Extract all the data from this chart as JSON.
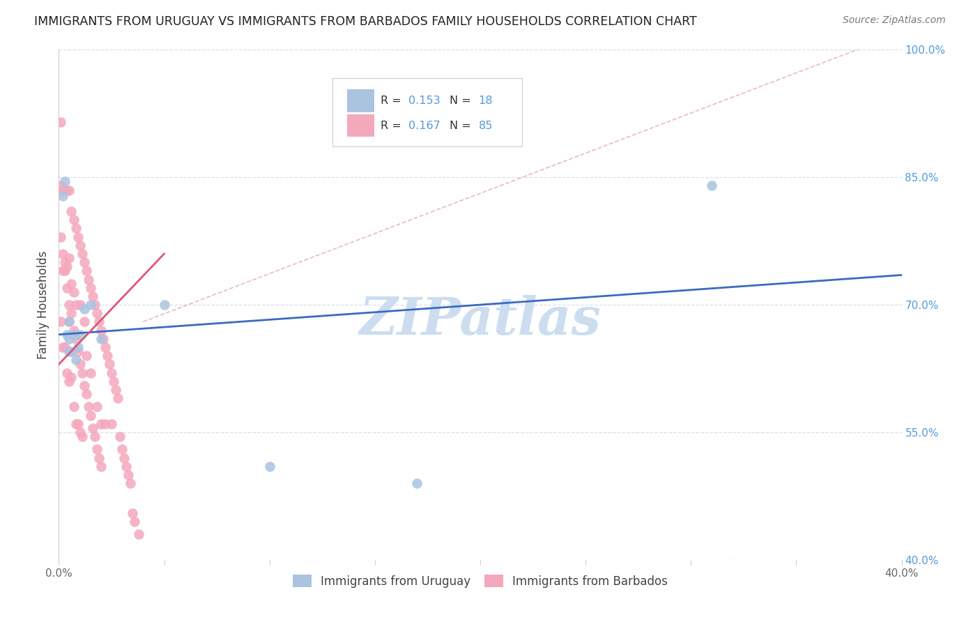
{
  "title": "IMMIGRANTS FROM URUGUAY VS IMMIGRANTS FROM BARBADOS FAMILY HOUSEHOLDS CORRELATION CHART",
  "source": "Source: ZipAtlas.com",
  "ylabel": "Family Households",
  "xlim": [
    0.0,
    0.4
  ],
  "ylim": [
    0.4,
    1.0
  ],
  "xtick_positions": [
    0.0,
    0.05,
    0.1,
    0.15,
    0.2,
    0.25,
    0.3,
    0.35,
    0.4
  ],
  "xtick_labels": [
    "0.0%",
    "",
    "",
    "",
    "",
    "",
    "",
    "",
    "40.0%"
  ],
  "ytick_positions": [
    0.4,
    0.55,
    0.7,
    0.85,
    1.0
  ],
  "ytick_labels": [
    "40.0%",
    "55.0%",
    "70.0%",
    "85.0%",
    "100.0%"
  ],
  "legend_r_uruguay": "0.153",
  "legend_n_uruguay": "18",
  "legend_r_barbados": "0.167",
  "legend_n_barbados": "85",
  "uruguay_color": "#aac4e0",
  "barbados_color": "#f4a8bc",
  "uruguay_line_color": "#3a6bbf",
  "barbados_line_color": "#e05575",
  "ref_line_color": "#e8b0bc",
  "grid_color": "#d8dfe8",
  "ytick_color": "#5599dd",
  "xtick_color": "#666666",
  "watermark": "ZIPatlas",
  "watermark_color": "#ccddf0",
  "uruguay_x": [
    0.002,
    0.003,
    0.004,
    0.005,
    0.005,
    0.006,
    0.007,
    0.008,
    0.01,
    0.012,
    0.015,
    0.02,
    0.05,
    0.1,
    0.17,
    0.31,
    0.005,
    0.009
  ],
  "uruguay_y": [
    0.828,
    0.845,
    0.665,
    0.68,
    0.645,
    0.645,
    0.665,
    0.635,
    0.665,
    0.695,
    0.7,
    0.66,
    0.7,
    0.51,
    0.49,
    0.84,
    0.66,
    0.65
  ],
  "barbados_x": [
    0.001,
    0.001,
    0.001,
    0.002,
    0.002,
    0.002,
    0.003,
    0.003,
    0.003,
    0.004,
    0.004,
    0.004,
    0.005,
    0.005,
    0.005,
    0.005,
    0.006,
    0.006,
    0.006,
    0.007,
    0.007,
    0.007,
    0.008,
    0.008,
    0.008,
    0.009,
    0.009,
    0.01,
    0.01,
    0.01,
    0.011,
    0.011,
    0.012,
    0.012,
    0.013,
    0.013,
    0.014,
    0.015,
    0.015,
    0.016,
    0.017,
    0.018,
    0.018,
    0.019,
    0.02,
    0.02,
    0.021,
    0.022,
    0.022,
    0.023,
    0.024,
    0.025,
    0.025,
    0.026,
    0.027,
    0.028,
    0.029,
    0.03,
    0.031,
    0.032,
    0.033,
    0.034,
    0.035,
    0.036,
    0.038,
    0.001,
    0.002,
    0.003,
    0.004,
    0.005,
    0.006,
    0.007,
    0.008,
    0.009,
    0.01,
    0.011,
    0.012,
    0.013,
    0.014,
    0.015,
    0.016,
    0.017,
    0.018,
    0.019,
    0.02
  ],
  "barbados_y": [
    0.915,
    0.84,
    0.68,
    0.835,
    0.74,
    0.65,
    0.835,
    0.75,
    0.65,
    0.835,
    0.745,
    0.62,
    0.835,
    0.755,
    0.68,
    0.61,
    0.81,
    0.725,
    0.615,
    0.8,
    0.715,
    0.58,
    0.79,
    0.7,
    0.56,
    0.78,
    0.56,
    0.77,
    0.7,
    0.55,
    0.76,
    0.545,
    0.75,
    0.68,
    0.74,
    0.64,
    0.73,
    0.72,
    0.62,
    0.71,
    0.7,
    0.69,
    0.58,
    0.68,
    0.67,
    0.56,
    0.66,
    0.65,
    0.56,
    0.64,
    0.63,
    0.62,
    0.56,
    0.61,
    0.6,
    0.59,
    0.545,
    0.53,
    0.52,
    0.51,
    0.5,
    0.49,
    0.455,
    0.445,
    0.43,
    0.78,
    0.76,
    0.74,
    0.72,
    0.7,
    0.69,
    0.67,
    0.66,
    0.645,
    0.63,
    0.62,
    0.605,
    0.595,
    0.58,
    0.57,
    0.555,
    0.545,
    0.53,
    0.52,
    0.51
  ],
  "uru_line_x": [
    0.0,
    0.4
  ],
  "uru_line_y": [
    0.665,
    0.735
  ],
  "barb_line_x": [
    0.0,
    0.05
  ],
  "barb_line_y": [
    0.63,
    0.76
  ],
  "ref_line_x": [
    0.04,
    0.4
  ],
  "ref_line_y": [
    0.68,
    1.02
  ]
}
